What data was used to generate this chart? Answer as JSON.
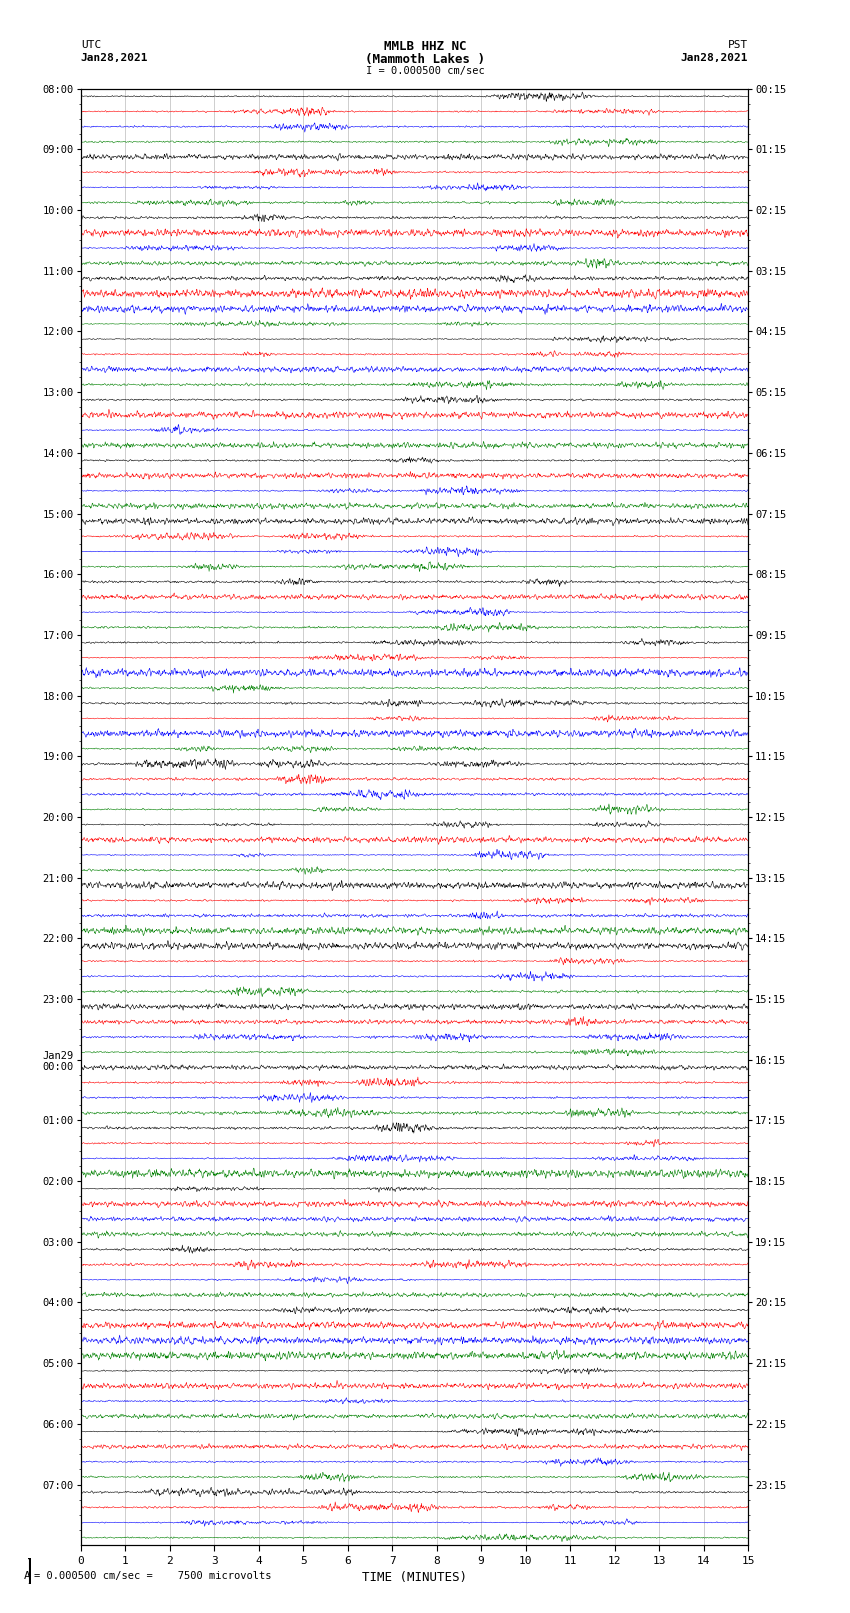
{
  "title_line1": "MMLB HHZ NC",
  "title_line2": "(Mammoth Lakes )",
  "title_line3": "I = 0.000500 cm/sec",
  "utc_label": "UTC",
  "utc_date": "Jan28,2021",
  "pst_label": "PST",
  "pst_date": "Jan28,2021",
  "xlabel": "TIME (MINUTES)",
  "footer": "= 0.000500 cm/sec =    7500 microvolts",
  "colors": [
    "black",
    "red",
    "blue",
    "green"
  ],
  "xlim": [
    0,
    15
  ],
  "x_ticks": [
    0,
    1,
    2,
    3,
    4,
    5,
    6,
    7,
    8,
    9,
    10,
    11,
    12,
    13,
    14,
    15
  ],
  "left_times_major": [
    "08:00",
    "09:00",
    "10:00",
    "11:00",
    "12:00",
    "13:00",
    "14:00",
    "15:00",
    "16:00",
    "17:00",
    "18:00",
    "19:00",
    "20:00",
    "21:00",
    "22:00",
    "23:00",
    "Jan29\n00:00",
    "01:00",
    "02:00",
    "03:00",
    "04:00",
    "05:00",
    "06:00",
    "07:00"
  ],
  "right_times_major": [
    "00:15",
    "01:15",
    "02:15",
    "03:15",
    "04:15",
    "05:15",
    "06:15",
    "07:15",
    "08:15",
    "09:15",
    "10:15",
    "11:15",
    "12:15",
    "13:15",
    "14:15",
    "15:15",
    "16:15",
    "17:15",
    "18:15",
    "19:15",
    "20:15",
    "21:15",
    "22:15",
    "23:15"
  ],
  "num_hour_blocks": 24,
  "traces_per_block": 4,
  "noise_amplitude": 0.38,
  "fig_width": 8.5,
  "fig_height": 16.13,
  "dpi": 100,
  "bg_color": "white",
  "trace_color_order": [
    "black",
    "red",
    "blue",
    "green"
  ],
  "grid_color": "#aaaaaa",
  "tick_label_fontsize": 7.5
}
